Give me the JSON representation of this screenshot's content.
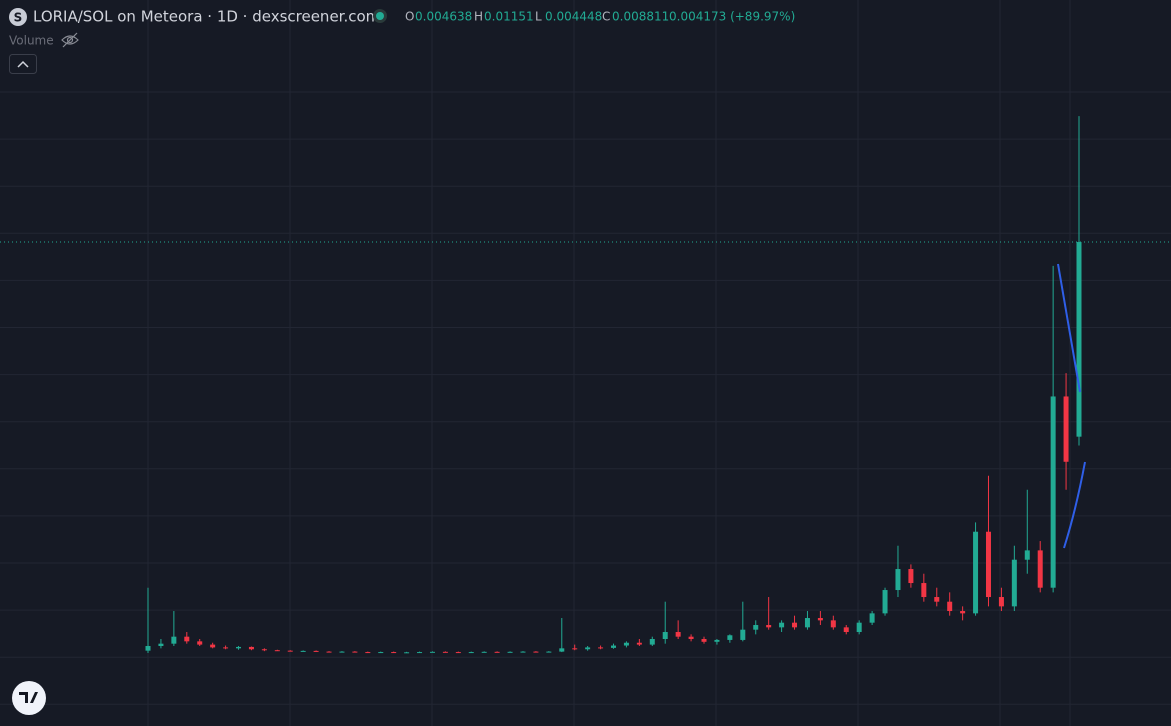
{
  "chart_data": {
    "type": "candlestick",
    "title": "LORIA/SOL on Meteora · 1D · dexscreener.com",
    "ohlc_labels": [
      "O",
      "H",
      "L",
      "C"
    ],
    "change": "0.004173 (+89.97%)",
    "volume_label": "Volume",
    "up_color": "#22ab94",
    "down_color": "#f23645",
    "ylim": [
      0,
      0.014
    ],
    "open": [
      5e-05,
      0.00015,
      0.0002,
      0.00035,
      0.00025,
      0.00018,
      0.00012,
      0.0001,
      0.00013,
      8e-05,
      6e-05,
      5e-05,
      4e-05,
      4.5e-05,
      3e-05,
      2.5e-05,
      3e-05,
      2e-05,
      1.5e-05,
      2e-05,
      1e-05,
      1.5e-05,
      2e-05,
      2.5e-05,
      2e-05,
      1.5e-05,
      2e-05,
      2.5e-05,
      2e-05,
      2.5e-05,
      3e-05,
      2.5e-05,
      3e-05,
      0.0001,
      8e-05,
      0.00012,
      0.00011,
      0.00016,
      0.00022,
      0.00018,
      0.0003,
      0.00045,
      0.00035,
      0.0003,
      0.00024,
      0.00028,
      0.00028,
      0.0005,
      0.0006,
      0.00055,
      0.00065,
      0.00055,
      0.00075,
      0.0007,
      0.00055,
      0.00045,
      0.00065,
      0.00085,
      0.00135,
      0.0018,
      0.0015,
      0.0012,
      0.0011,
      0.0009,
      0.00085,
      0.0026,
      0.0012,
      0.001,
      0.002,
      0.0022,
      0.0014,
      0.0055,
      0.004638
    ],
    "high": [
      0.0014,
      0.0003,
      0.0009,
      0.00045,
      0.0003,
      0.00022,
      0.00016,
      0.00015,
      0.00014,
      0.0001,
      7e-05,
      6e-05,
      5.5e-05,
      5.5e-05,
      4e-05,
      4e-05,
      4e-05,
      3e-05,
      3e-05,
      3e-05,
      2.5e-05,
      3e-05,
      3.5e-05,
      3.5e-05,
      3e-05,
      3e-05,
      3.5e-05,
      3.5e-05,
      3.5e-05,
      4e-05,
      4e-05,
      4e-05,
      0.00075,
      0.00018,
      0.00015,
      0.00016,
      0.0002,
      0.00025,
      0.0003,
      0.00035,
      0.0011,
      0.0007,
      0.0004,
      0.00035,
      0.0003,
      0.0004,
      0.0011,
      0.0007,
      0.0012,
      0.0007,
      0.0008,
      0.0009,
      0.0009,
      0.0008,
      0.0006,
      0.0007,
      0.0009,
      0.0014,
      0.0023,
      0.0019,
      0.0017,
      0.0014,
      0.0013,
      0.001,
      0.0028,
      0.0038,
      0.0014,
      0.0023,
      0.0035,
      0.0024,
      0.0083,
      0.006,
      0.01151
    ],
    "low": [
      0,
      0.0001,
      0.00015,
      0.0002,
      0.00015,
      0.0001,
      8e-05,
      7e-05,
      6e-05,
      4e-05,
      4.5e-05,
      3.5e-05,
      3.5e-05,
      2.5e-05,
      2e-05,
      2e-05,
      1.5e-05,
      1e-05,
      1e-05,
      5e-06,
      5e-06,
      1e-05,
      1.5e-05,
      1.5e-05,
      1e-05,
      1e-05,
      1.5e-05,
      1.5e-05,
      1.5e-05,
      2e-05,
      2e-05,
      2e-05,
      2e-05,
      6e-05,
      5e-05,
      8e-05,
      9e-05,
      0.00012,
      0.00015,
      0.00015,
      0.0002,
      0.0003,
      0.00025,
      0.0002,
      0.00018,
      0.00022,
      0.00025,
      0.0004,
      0.0005,
      0.00045,
      0.0005,
      0.0005,
      0.0006,
      0.0005,
      0.0004,
      0.0004,
      0.0006,
      0.0008,
      0.0012,
      0.0014,
      0.0011,
      0.001,
      0.0008,
      0.0007,
      0.0008,
      0.001,
      0.0009,
      0.0009,
      0.0017,
      0.0013,
      0.0013,
      0.0035,
      0.004448
    ],
    "close": [
      0.00015,
      0.0002,
      0.00035,
      0.00025,
      0.00018,
      0.00012,
      0.0001,
      0.00013,
      8e-05,
      6e-05,
      5e-05,
      4e-05,
      4.5e-05,
      3e-05,
      2.5e-05,
      3e-05,
      2e-05,
      1.5e-05,
      2e-05,
      1e-05,
      1.5e-05,
      2e-05,
      2.5e-05,
      2e-05,
      1.5e-05,
      2e-05,
      2.5e-05,
      2e-05,
      2.5e-05,
      3e-05,
      2.5e-05,
      3e-05,
      0.0001,
      8e-05,
      0.00012,
      0.00011,
      0.00016,
      0.00022,
      0.00018,
      0.0003,
      0.00045,
      0.00035,
      0.0003,
      0.00024,
      0.00028,
      0.00038,
      0.0005,
      0.0006,
      0.00055,
      0.00065,
      0.00055,
      0.00075,
      0.0007,
      0.00055,
      0.00045,
      0.00065,
      0.00085,
      0.00135,
      0.0018,
      0.0015,
      0.0012,
      0.0011,
      0.0009,
      0.00085,
      0.0026,
      0.0012,
      0.001,
      0.002,
      0.0022,
      0.0014,
      0.0055,
      0.0041,
      0.008811
    ]
  }
}
